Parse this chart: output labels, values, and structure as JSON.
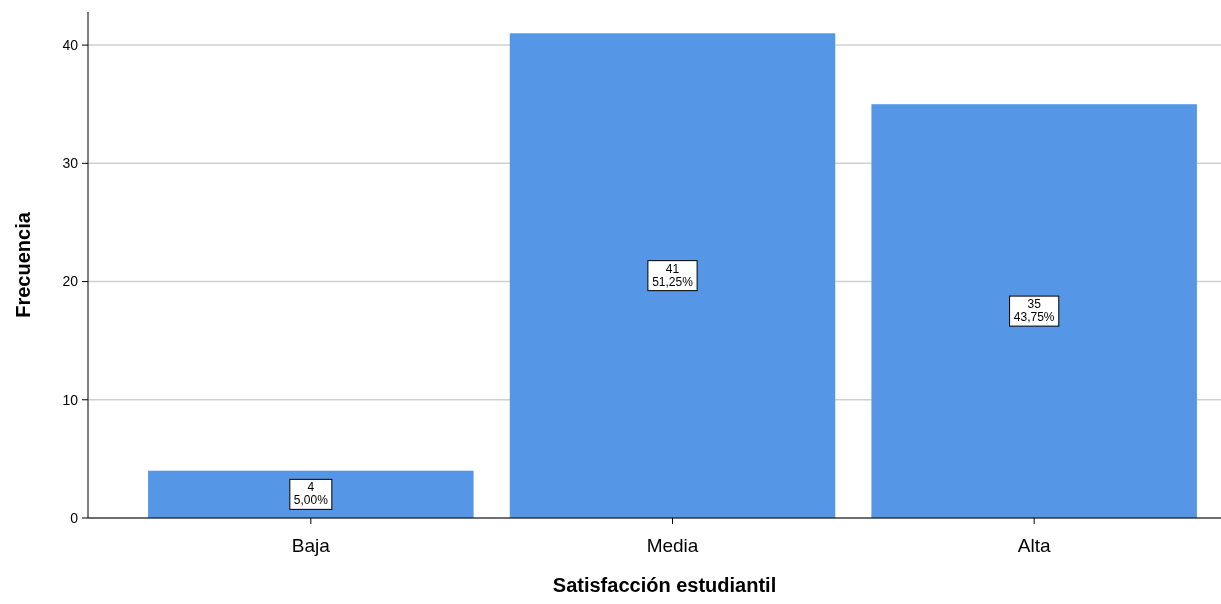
{
  "chart_data": {
    "type": "bar",
    "xlabel": "Satisfacción estudiantil",
    "ylabel": "Frecuencia",
    "categories": [
      "Baja",
      "Media",
      "Alta"
    ],
    "values": [
      4,
      41,
      35
    ],
    "value_labels": [
      "4\n5,00%",
      "41\n51,25%",
      "35\n43,75%"
    ],
    "color": "#5596e6",
    "ylim": [
      0,
      42.8
    ],
    "yticks": [
      0,
      10,
      20,
      30,
      40
    ],
    "grid": "y"
  }
}
